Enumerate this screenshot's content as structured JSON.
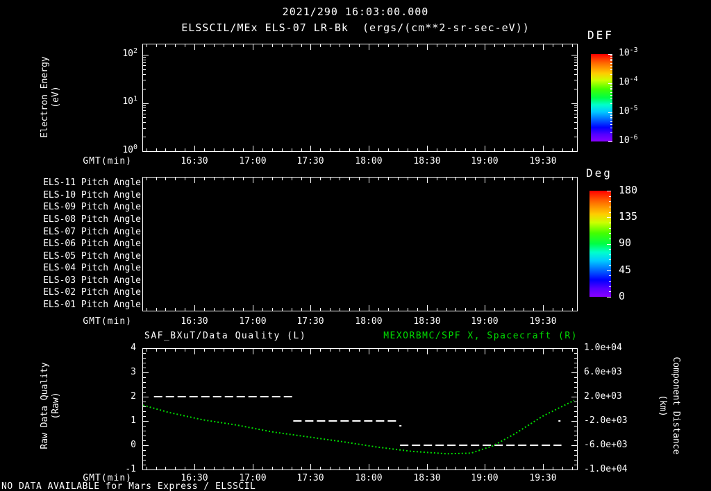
{
  "title": {
    "datetime": "2021/290 16:03:00.000",
    "instrument": "ELSSCIL/MEx ELS-07 LR-Bk  (ergs/(cm**2-sr-sec-eV))"
  },
  "colors": {
    "background": "#000000",
    "text": "#ffffff",
    "series_green": "#00dd00"
  },
  "time_axis": {
    "label": "GMT(min)",
    "major_labels": [
      "16:30",
      "17:00",
      "17:30",
      "18:00",
      "18:30",
      "19:00",
      "19:30"
    ],
    "major_hours": [
      16.5,
      17.0,
      17.5,
      18.0,
      18.5,
      19.0,
      19.5
    ],
    "start_hour": 16.05,
    "end_hour": 19.785,
    "minor_step_minutes": 5
  },
  "panel_energy": {
    "ylabel_line1": "Electron Energy",
    "ylabel_line2": "(eV)",
    "yticks": [
      {
        "label": "10^2",
        "value": 100
      },
      {
        "label": "10^1",
        "value": 10
      },
      {
        "label": "10^0",
        "value": 1
      }
    ],
    "colorbar": {
      "title": "DEF",
      "ticks": [
        {
          "label": "10^-3"
        },
        {
          "label": "10^-4"
        },
        {
          "label": "10^-5"
        },
        {
          "label": "10^-6"
        }
      ]
    }
  },
  "panel_pitch": {
    "row_labels": [
      "ELS-11 Pitch Angle",
      "ELS-10 Pitch Angle",
      "ELS-09 Pitch Angle",
      "ELS-08 Pitch Angle",
      "ELS-07 Pitch Angle",
      "ELS-06 Pitch Angle",
      "ELS-05 Pitch Angle",
      "ELS-04 Pitch Angle",
      "ELS-03 Pitch Angle",
      "ELS-02 Pitch Angle",
      "ELS-01 Pitch Angle"
    ],
    "colorbar": {
      "title": "Deg",
      "ticks": [
        "180",
        "135",
        "90",
        "45",
        "0"
      ]
    }
  },
  "panel_quality": {
    "title_left": "SAF_BXuT/Data Quality (L)",
    "title_right": "MEXORBMC/SPF X, Spacecraft (R)",
    "ylabel_left_line1": "Raw Data Quality",
    "ylabel_left_line2": "(Raw)",
    "yticks_left": [
      "4",
      "3",
      "2",
      "1",
      "0",
      "-1"
    ],
    "ylabel_right_line1": "Component Distance",
    "ylabel_right_line2": "(km)",
    "yticks_right": [
      "1.0e+04",
      "6.0e+03",
      "2.0e+03",
      "-2.0e+03",
      "-6.0e+03",
      "-1.0e+04"
    ]
  },
  "status_bar": {
    "message": "NO DATA AVAILABLE for Mars Express / ELSSCIL"
  },
  "chart_data": [
    {
      "type": "heatmap",
      "title": "ELSSCIL/MEx ELS-07 LR-Bk (ergs/(cm**2-sr-sec-eV))",
      "xlabel": "GMT(min)",
      "ylabel": "Electron Energy (eV)",
      "x_range_hours": [
        16.05,
        19.785
      ],
      "x_tick_labels": [
        "16:30",
        "17:00",
        "17:30",
        "18:00",
        "18:30",
        "19:00",
        "19:30"
      ],
      "y_scale": "log",
      "ylim": [
        1,
        170
      ],
      "colorbar_label": "DEF",
      "colorbar_scale": "log",
      "colorbar_lim": [
        1e-06,
        0.001
      ],
      "values": [],
      "note": "panel is empty - no data available"
    },
    {
      "type": "heatmap",
      "title": "ELS Pitch Angle rows",
      "xlabel": "GMT(min)",
      "x_range_hours": [
        16.05,
        19.785
      ],
      "rows": [
        "ELS-11",
        "ELS-10",
        "ELS-09",
        "ELS-08",
        "ELS-07",
        "ELS-06",
        "ELS-05",
        "ELS-04",
        "ELS-03",
        "ELS-02",
        "ELS-01"
      ],
      "colorbar_label": "Deg",
      "colorbar_lim": [
        0,
        180
      ],
      "colorbar_ticks": [
        180,
        135,
        90,
        45,
        0
      ],
      "values": [],
      "note": "panel is empty - no data available"
    },
    {
      "type": "line",
      "title_left": "SAF_BXuT/Data Quality (L)",
      "title_right": "MEXORBMC/SPF X, Spacecraft (R)",
      "xlabel": "GMT(min)",
      "x_range_hours": [
        16.05,
        19.785
      ],
      "x_tick_labels": [
        "16:30",
        "17:00",
        "17:30",
        "18:00",
        "18:30",
        "19:00",
        "19:30"
      ],
      "ylim_left": [
        -1,
        4
      ],
      "ylim_right": [
        -10000,
        10000
      ],
      "series": [
        {
          "name": "SAF_BXuT/Data Quality",
          "axis": "left",
          "style": "dashed",
          "color": "#ffffff",
          "segments": [
            {
              "t_start": 16.15,
              "t_end": 17.34,
              "value": 2.0
            },
            {
              "t_start": 17.35,
              "t_end": 18.26,
              "value": 1.0
            },
            {
              "t_start": 18.27,
              "t_end": 19.66,
              "value": 0.0
            }
          ],
          "transition_dots": [
            {
              "t": 18.27,
              "value": 0.8
            },
            {
              "t": 19.64,
              "value": 1.0
            }
          ]
        },
        {
          "name": "MEXORBMC/SPF X Spacecraft",
          "axis": "right",
          "style": "dotted",
          "color": "#00dd00",
          "points": [
            [
              16.05,
              600
            ],
            [
              16.28,
              -600
            ],
            [
              16.57,
              -1800
            ],
            [
              16.87,
              -2700
            ],
            [
              17.17,
              -3800
            ],
            [
              17.47,
              -4600
            ],
            [
              17.77,
              -5400
            ],
            [
              18.07,
              -6300
            ],
            [
              18.37,
              -7000
            ],
            [
              18.67,
              -7400
            ],
            [
              18.88,
              -7300
            ],
            [
              19.07,
              -6100
            ],
            [
              19.26,
              -4100
            ],
            [
              19.5,
              -1200
            ],
            [
              19.77,
              1400
            ]
          ]
        }
      ]
    }
  ]
}
